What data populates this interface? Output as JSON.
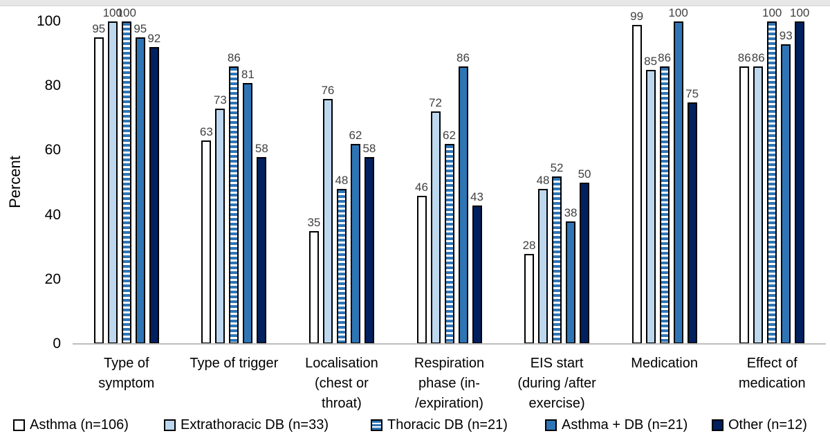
{
  "chart_data": {
    "type": "bar",
    "title": "",
    "xlabel": "",
    "ylabel": "Percent",
    "ylim": [
      0,
      100
    ],
    "yticks": [
      0,
      20,
      40,
      60,
      80,
      100
    ],
    "grid": false,
    "legend_position": "bottom",
    "value_labels": true,
    "categories": [
      [
        "Type of",
        "symptom"
      ],
      [
        "Type of trigger"
      ],
      [
        "Localisation",
        "(chest or",
        "throat)"
      ],
      [
        "Respiration",
        "phase (in-",
        "/expiration)"
      ],
      [
        "EIS start",
        "(during /after",
        "exercise)"
      ],
      [
        "Medication"
      ],
      [
        "Effect of",
        "medication"
      ]
    ],
    "series": [
      {
        "name": "Asthma (n=106)",
        "fill": "#FFFFFF",
        "pattern": "solid",
        "values": [
          95,
          63,
          35,
          46,
          28,
          99,
          86
        ]
      },
      {
        "name": "Extrathoracic DB (n=33)",
        "fill": "#BDD7EE",
        "pattern": "solid",
        "values": [
          100,
          73,
          76,
          72,
          48,
          85,
          86
        ]
      },
      {
        "name": "Thoracic DB (n=21)",
        "fill": "#2E75B6",
        "pattern": "hstripes",
        "values": [
          100,
          86,
          48,
          62,
          52,
          86,
          100
        ]
      },
      {
        "name": "Asthma + DB (n=21)",
        "fill": "#2E75B6",
        "pattern": "solid",
        "values": [
          95,
          81,
          62,
          86,
          38,
          100,
          93
        ]
      },
      {
        "name": "Other (n=12)",
        "fill": "#002060",
        "pattern": "solid",
        "values": [
          92,
          58,
          58,
          43,
          50,
          75,
          100
        ]
      }
    ],
    "colors": {
      "bar_outline": "#000000",
      "value_label_text": "#404040",
      "axis_text": "#000000",
      "baseline": "#BDBDBD",
      "stripe_alt": "#FFFFFF"
    }
  }
}
